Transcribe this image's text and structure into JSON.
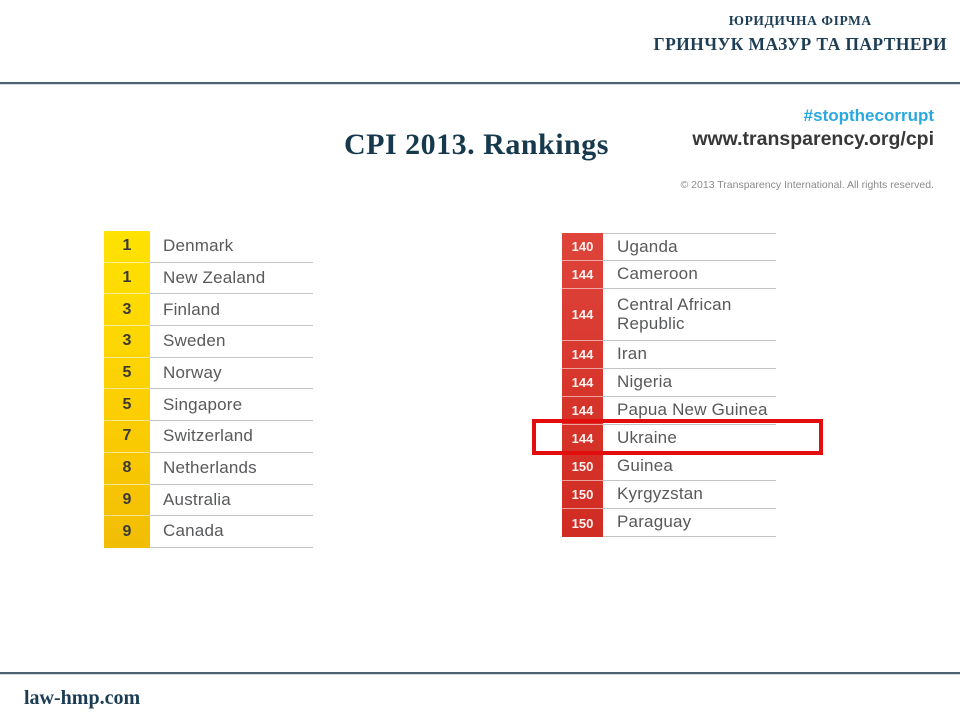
{
  "header": {
    "firm_type": "ЮРИДИЧНА ФІРМА",
    "firm_name": "ГРИНЧУК МАЗУР ТА ПАРТНЕРИ"
  },
  "title": "CPI 2013. Rankings",
  "transparency": {
    "hashtag": "#stopthecorrupt",
    "url": "www.transparency.org/cpi",
    "copyright": "© 2013 Transparency International. All rights reserved."
  },
  "footer": {
    "site": "law-hmp.com"
  },
  "colors": {
    "theme_dark_blue": "#1b3c52",
    "hashtag_cyan": "#29a9e0",
    "rank_yellow": "#fccf00",
    "rank_red": "#d6332a",
    "highlight_red": "#e30d0d",
    "separator_gray": "#c4c4c4"
  },
  "chart_data": {
    "type": "table",
    "title": "CPI 2013. Rankings",
    "tables": [
      {
        "name": "top_ranked_countries",
        "rank_column_color": "#fccf00",
        "rows": [
          {
            "rank": "1",
            "country": "Denmark"
          },
          {
            "rank": "1",
            "country": "New Zealand"
          },
          {
            "rank": "3",
            "country": "Finland"
          },
          {
            "rank": "3",
            "country": "Sweden"
          },
          {
            "rank": "5",
            "country": "Norway"
          },
          {
            "rank": "5",
            "country": "Singapore"
          },
          {
            "rank": "7",
            "country": "Switzerland"
          },
          {
            "rank": "8",
            "country": "Netherlands"
          },
          {
            "rank": "9",
            "country": "Australia"
          },
          {
            "rank": "9",
            "country": "Canada"
          }
        ]
      },
      {
        "name": "bottom_ranked_countries",
        "rank_column_color": "#d6332a",
        "highlighted_row": "Ukraine",
        "rows": [
          {
            "rank": "140",
            "country": "Uganda"
          },
          {
            "rank": "144",
            "country": "Cameroon"
          },
          {
            "rank": "144",
            "country": "Central African Republic",
            "tall": true
          },
          {
            "rank": "144",
            "country": "Iran"
          },
          {
            "rank": "144",
            "country": "Nigeria"
          },
          {
            "rank": "144",
            "country": "Papua New Guinea"
          },
          {
            "rank": "144",
            "country": "Ukraine",
            "highlighted": true
          },
          {
            "rank": "150",
            "country": "Guinea"
          },
          {
            "rank": "150",
            "country": "Kyrgyzstan"
          },
          {
            "rank": "150",
            "country": "Paraguay"
          }
        ]
      }
    ]
  }
}
